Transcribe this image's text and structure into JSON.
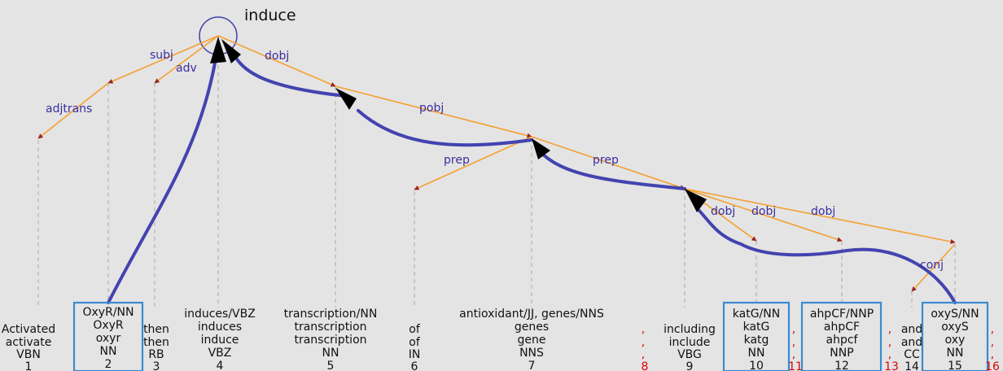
{
  "root_word": "induce",
  "tokens": [
    {
      "id": "1",
      "lines": [
        "Activated",
        "activate",
        "VBN"
      ]
    },
    {
      "id": "2",
      "lines": [
        "OxyR/NN",
        "OxyR",
        "oxyr",
        "NN"
      ]
    },
    {
      "id": "3",
      "lines": [
        "then",
        "then",
        "RB"
      ]
    },
    {
      "id": "4",
      "lines": [
        "induces/VBZ",
        "induces",
        "induce",
        "VBZ"
      ]
    },
    {
      "id": "5",
      "lines": [
        "transcription/NN",
        "transcription",
        "transcription",
        "NN"
      ]
    },
    {
      "id": "6",
      "lines": [
        "of",
        "of",
        "IN"
      ]
    },
    {
      "id": "7",
      "lines": [
        "antioxidant/JJ, genes/NNS",
        "genes",
        "gene",
        "NNS"
      ]
    },
    {
      "id": "8",
      "lines": [
        ",",
        ",",
        ","
      ]
    },
    {
      "id": "9",
      "lines": [
        "including",
        "include",
        "VBG"
      ]
    },
    {
      "id": "10",
      "lines": [
        "katG/NN",
        "katG",
        "katg",
        "NN"
      ]
    },
    {
      "id": "11",
      "lines": [
        ",",
        ",",
        ","
      ]
    },
    {
      "id": "12",
      "lines": [
        "ahpCF/NNP",
        "ahpCF",
        "ahpcf",
        "NNP"
      ]
    },
    {
      "id": "13",
      "lines": [
        ",",
        ",",
        ","
      ]
    },
    {
      "id": "14",
      "lines": [
        "and",
        "and",
        "CC"
      ]
    },
    {
      "id": "15",
      "lines": [
        "oxyS/NN",
        "oxyS",
        "oxy",
        "NN"
      ]
    },
    {
      "id": "16",
      "lines": [
        ",",
        ",",
        ","
      ]
    }
  ],
  "dependencies": [
    "subj",
    "adv",
    "dobj",
    "adjtrans",
    "pobj",
    "prep",
    "prep",
    "dobj",
    "dobj",
    "dobj",
    "conj"
  ],
  "colors": {
    "edge": "#f5a030",
    "arrowhead": "#9a2222",
    "path": "#4343b0",
    "highlight_box": "#3a8ad0",
    "dep_label": "#3a2ea0",
    "punct": "#e00000",
    "background": "#e4e4e4"
  }
}
